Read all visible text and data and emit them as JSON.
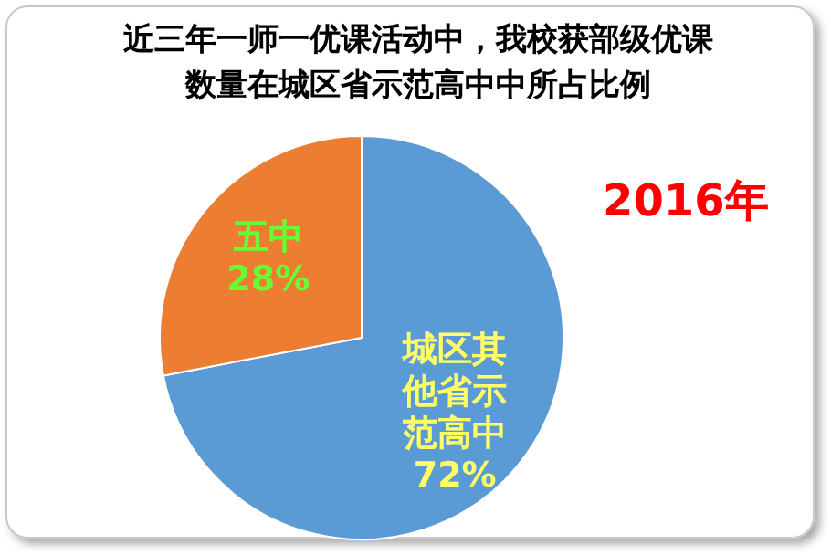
{
  "chart_data": {
    "type": "pie",
    "title": "近三年一师一优课活动中，我校获部级优课数量在城区省示范高中中所占比例",
    "categories": [
      "城区其他省示范高中",
      "五中"
    ],
    "values": [
      72,
      28
    ],
    "value_labels": [
      "72%",
      "28%"
    ],
    "colors": [
      "#5b9bd5",
      "#ed7d31"
    ],
    "annotations": [
      "2016年"
    ],
    "legend": false
  }
}
